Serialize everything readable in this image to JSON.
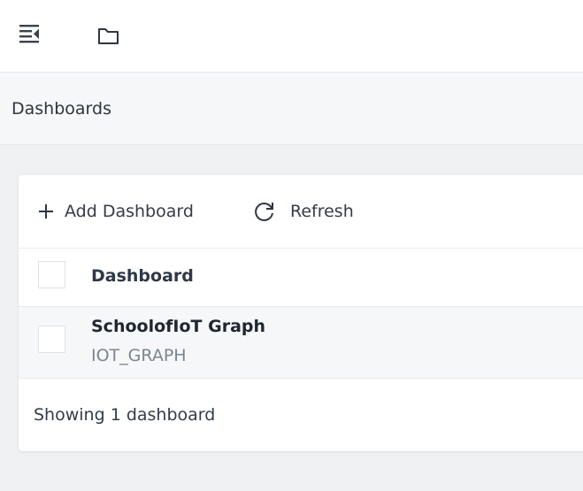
{
  "topbar": {
    "menu_icon": "menu-collapse-icon",
    "folder_icon": "folder-icon"
  },
  "breadcrumb": {
    "title": "Dashboards"
  },
  "toolbar": {
    "add_label": "Add Dashboard",
    "refresh_label": "Refresh"
  },
  "table": {
    "columns": [
      "Dashboard"
    ],
    "rows": [
      {
        "name": "SchoolofIoT Graph",
        "id": "IOT_GRAPH"
      }
    ]
  },
  "footer": {
    "status": "Showing 1 dashboard"
  }
}
